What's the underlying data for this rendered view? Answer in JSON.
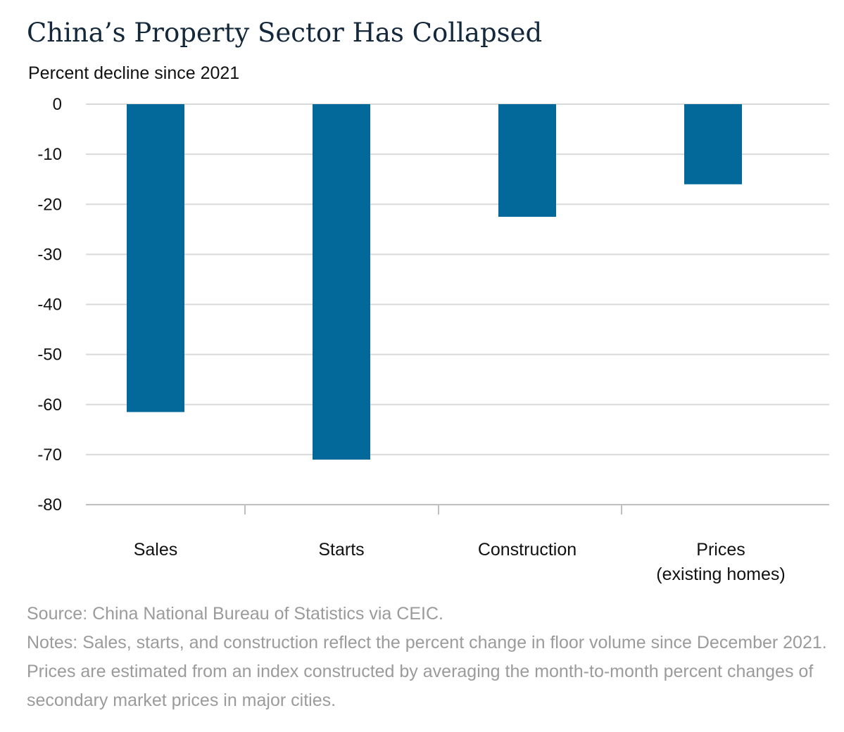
{
  "title": "China’s Property Sector Has Collapsed",
  "notes": {
    "source": "Source: China National Bureau of Statistics via CEIC.",
    "notes": "Notes: Sales, starts, and construction reflect the percent change in floor volume since December 2021. Prices are estimated from an index constructed by averaging the month-to-month percent changes of secondary market prices in major cities."
  },
  "colors": {
    "bar": "#03699a",
    "title": "#14283c",
    "grid": "#d9d9d9",
    "notes": "#9b9b9b"
  },
  "chart_data": {
    "type": "bar",
    "ylabel": "Percent decline since 2021",
    "xlabel": "",
    "categories": [
      [
        "Sales"
      ],
      [
        "Starts"
      ],
      [
        "Construction"
      ],
      [
        "Prices",
        "(existing homes)"
      ]
    ],
    "values": [
      -61.5,
      -71,
      -22.5,
      -16
    ],
    "ylim": [
      -80,
      0
    ],
    "yticks": [
      0,
      -10,
      -20,
      -30,
      -40,
      -50,
      -60,
      -70,
      -80
    ],
    "grid": true,
    "legend": "none"
  }
}
